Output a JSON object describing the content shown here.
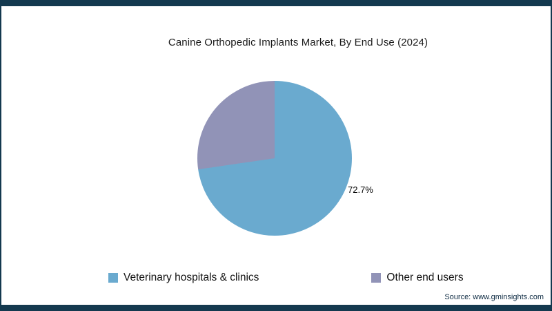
{
  "title": "Canine Orthopedic Implants Market, By End Use (2024)",
  "source": "Source: www.gminsights.com",
  "colors": {
    "frame": "#14394F",
    "background": "#FFFFFF",
    "text": "#1A1A1A",
    "series_blue": "#6AAACF",
    "series_gray": "#9193B7"
  },
  "chart_data": {
    "type": "pie",
    "title": "Canine Orthopedic Implants Market, By End Use (2024)",
    "slices": [
      {
        "label": "Veterinary hospitals & clinics",
        "value": 72.7,
        "color": "#6AAACF"
      },
      {
        "label": "Other end users",
        "value": 27.3,
        "color": "#9193B7"
      }
    ],
    "start_angle_deg": 0,
    "direction": "clockwise",
    "data_label": "72.7%",
    "legend_position": "bottom"
  }
}
